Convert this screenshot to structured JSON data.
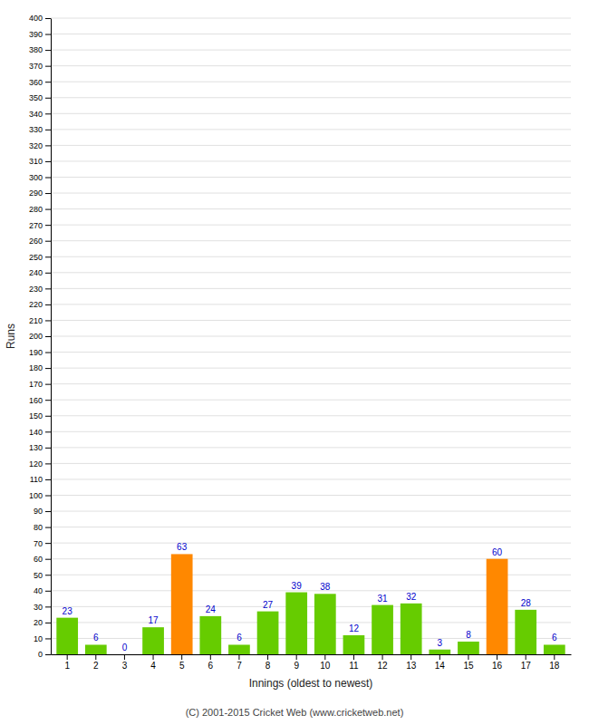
{
  "chart_data": {
    "type": "bar",
    "xlabel": "Innings (oldest to newest)",
    "ylabel": "Runs",
    "categories": [
      1,
      2,
      3,
      4,
      5,
      6,
      7,
      8,
      9,
      10,
      11,
      12,
      13,
      14,
      15,
      16,
      17,
      18
    ],
    "values": [
      23,
      6,
      0,
      17,
      63,
      24,
      6,
      27,
      39,
      38,
      12,
      31,
      32,
      3,
      8,
      60,
      28,
      6
    ],
    "colors": [
      "#66cc00",
      "#66cc00",
      "#66cc00",
      "#66cc00",
      "#ff8800",
      "#66cc00",
      "#66cc00",
      "#66cc00",
      "#66cc00",
      "#66cc00",
      "#66cc00",
      "#66cc00",
      "#66cc00",
      "#66cc00",
      "#66cc00",
      "#ff8800",
      "#66cc00",
      "#66cc00"
    ],
    "ylim": [
      0,
      400
    ],
    "yticks": [
      0,
      10,
      20,
      30,
      40,
      50,
      60,
      70,
      80,
      90,
      100,
      110,
      120,
      130,
      140,
      150,
      160,
      170,
      180,
      190,
      200,
      210,
      220,
      230,
      240,
      250,
      260,
      270,
      280,
      290,
      300,
      310,
      320,
      330,
      340,
      350,
      360,
      370,
      380,
      390,
      400
    ],
    "grid": true,
    "data_labels": true,
    "annotations": [
      "(C) 2001-2015 Cricket Web (www.cricketweb.net)"
    ]
  }
}
